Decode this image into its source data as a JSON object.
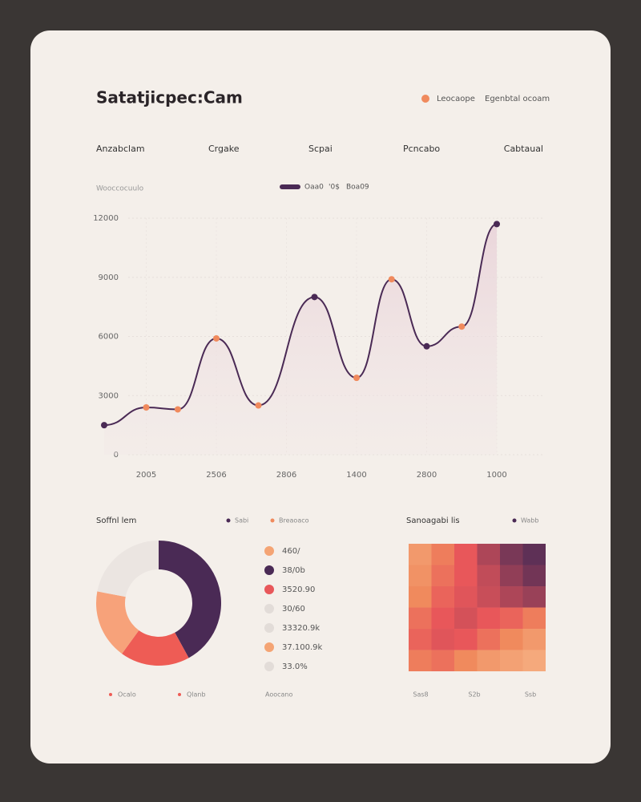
{
  "header": {
    "title": "Satatjicpec:Cam",
    "legend": [
      "Leocaope",
      "Egenbtal ocoam"
    ]
  },
  "tabs": [
    "Anzabclam",
    "Crgake",
    "Scpai",
    "Pcncabo",
    "Cabtaual"
  ],
  "chart_data": [
    {
      "type": "line",
      "subtitle": "Wooccocuulo",
      "legend_extra": [
        "'0$",
        "Boa09"
      ],
      "x": [
        0.4,
        1.0,
        1.45,
        2.0,
        2.6,
        3.4,
        4.0,
        4.5,
        5.0,
        5.5,
        6.0
      ],
      "series": [
        {
          "name": "Oaa0",
          "color": "#4a2a55",
          "values": [
            1500,
            2400,
            2300,
            5900,
            2500,
            8000,
            3900,
            8900,
            5500,
            6500,
            11700
          ]
        }
      ],
      "point_colors": [
        "#4a2a55",
        "#f08a5d",
        "#f08a5d",
        "#f08a5d",
        "#f08a5d",
        "#4a2a55",
        "#f08a5d",
        "#f08a5d",
        "#4a2a55",
        "#f08a5d",
        "#4a2a55"
      ],
      "xlim": [
        0.4,
        6.6
      ],
      "xticks": [
        {
          "value": 1,
          "label": "2005"
        },
        {
          "value": 2,
          "label": "2506"
        },
        {
          "value": 3,
          "label": "2806"
        },
        {
          "value": 4,
          "label": "1400"
        },
        {
          "value": 5,
          "label": "2800"
        },
        {
          "value": 6,
          "label": "1000"
        }
      ],
      "ylim": [
        0,
        12000
      ],
      "yticks": [
        0,
        3000,
        6000,
        9000,
        12000
      ],
      "grid": true
    },
    {
      "type": "pie",
      "title": "Soffnl lem",
      "legend_top": [
        "Sabi",
        "Breaoaco"
      ],
      "values": [
        42,
        18,
        18,
        22
      ],
      "colors": [
        "#4a2a55",
        "#ee5c55",
        "#f7a27a",
        "#ebe5e1"
      ],
      "legend_rows": [
        {
          "label": "460/",
          "color": "#f4a474"
        },
        {
          "label": "38/0b",
          "color": "#4a2a55"
        },
        {
          "label": "3520.90",
          "color": "#e8575a"
        },
        {
          "label": "30/60",
          "color": "#e2dcd8"
        },
        {
          "label": "33320.9k",
          "color": "#e2dcd8"
        },
        {
          "label": "37.100.9k",
          "color": "#f4a474"
        },
        {
          "label": "33.0%",
          "color": "#e2dcd8"
        }
      ],
      "bottom_labels": [
        "Ocalo",
        "Qlanb",
        "Aoocano"
      ]
    },
    {
      "type": "heatmap",
      "title": "Sanoagabi lis",
      "legend": [
        "Wabb"
      ],
      "values": [
        [
          30,
          45,
          60,
          75,
          88,
          95
        ],
        [
          35,
          50,
          60,
          70,
          82,
          90
        ],
        [
          40,
          55,
          62,
          68,
          75,
          80
        ],
        [
          50,
          60,
          65,
          60,
          55,
          45
        ],
        [
          55,
          62,
          60,
          50,
          40,
          30
        ],
        [
          45,
          50,
          40,
          30,
          25,
          20
        ]
      ],
      "xlabels": [
        "Sas8",
        "S2b",
        "Ssb"
      ]
    }
  ]
}
